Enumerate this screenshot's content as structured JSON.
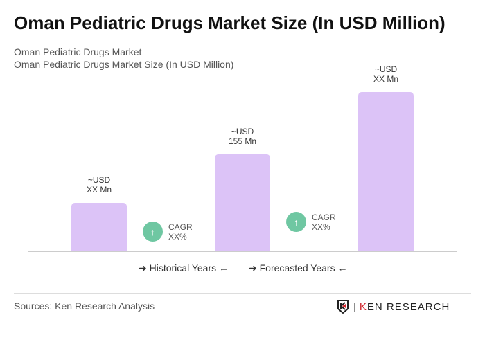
{
  "title": "Oman Pediatric Drugs Market Size (In USD Million)",
  "subtitle1": "Oman Pediatric Drugs Market",
  "subtitle2": "Oman Pediatric Drugs Market Size (In USD Million)",
  "chart_data": {
    "type": "bar",
    "values": [
      77.5,
      155,
      255
    ],
    "data_labels": [
      [
        "~USD",
        "XX Mn"
      ],
      [
        "~USD",
        "155 Mn"
      ],
      [
        "~USD",
        "XX Mn"
      ]
    ],
    "bar_color": "#dcc3f7",
    "cagr": [
      {
        "label": "CAGR",
        "value": "XX%"
      },
      {
        "label": "CAGR",
        "value": "XX%"
      }
    ],
    "cagr_color": "#6fc7a2",
    "legend": [
      "Historical Years",
      "Forecasted Years"
    ],
    "grid": false
  },
  "sources": "Sources: Ken Research Analysis",
  "logo": "KEN RESEARCH"
}
